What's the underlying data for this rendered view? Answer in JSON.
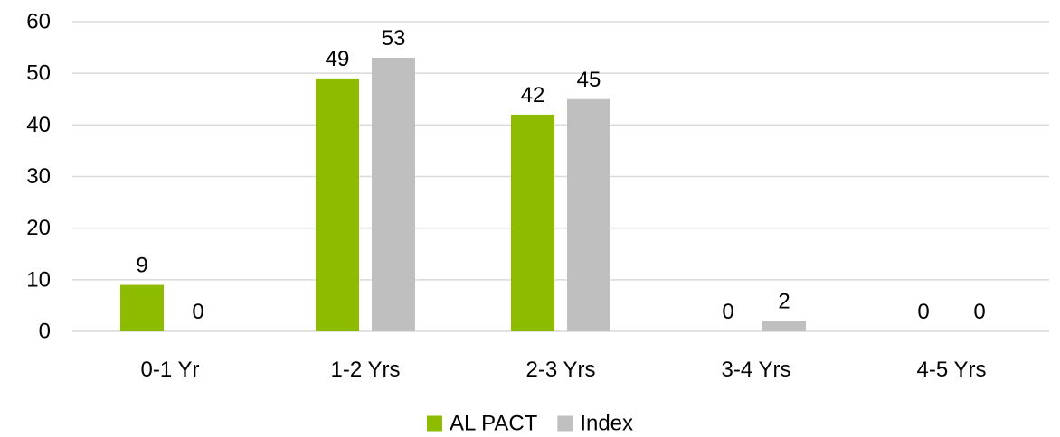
{
  "chart_data": {
    "type": "bar",
    "title": "",
    "xlabel": "",
    "ylabel": "",
    "categories": [
      "0-1 Yr",
      "1-2 Yrs",
      "2-3 Yrs",
      "3-4 Yrs",
      "4-5 Yrs"
    ],
    "series": [
      {
        "name": "AL PACT",
        "values": [
          9,
          49,
          42,
          0,
          0
        ],
        "color": "#8DBB00"
      },
      {
        "name": "Index",
        "values": [
          0,
          53,
          45,
          2,
          0
        ],
        "color": "#BFBFBF"
      }
    ],
    "ylim": [
      0,
      60
    ],
    "yticks": [
      0,
      10,
      20,
      30,
      40,
      50,
      60
    ],
    "grid": true,
    "gridline_color": "#D9D9D9",
    "data_labels": true,
    "legend_position": "bottom-center"
  }
}
